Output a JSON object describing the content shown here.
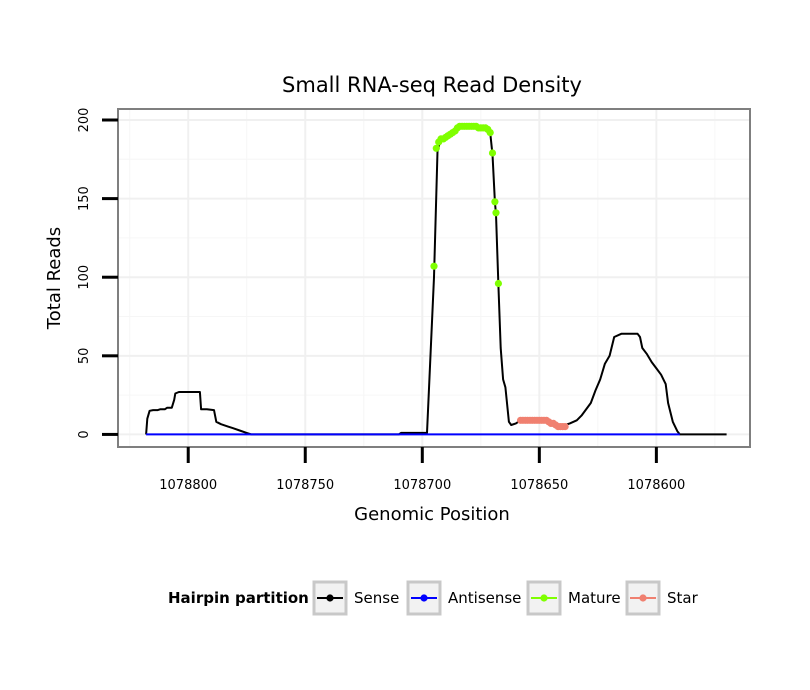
{
  "chart_data": {
    "type": "line",
    "title": "Small RNA-seq Read Density",
    "xlabel": "Genomic Position",
    "ylabel": "Total Reads",
    "xlim": [
      1078830,
      1078560
    ],
    "ylim": [
      -8,
      207
    ],
    "x_ticks": [
      1078800,
      1078750,
      1078700,
      1078650,
      1078600
    ],
    "y_ticks": [
      0,
      50,
      100,
      150,
      200
    ],
    "x_tick_labels": [
      "1078800",
      "1078750",
      "1078700",
      "1078650",
      "1078600"
    ],
    "y_tick_labels": [
      "0",
      "50",
      "100",
      "150",
      "200"
    ],
    "grid": true,
    "legend": {
      "position": "bottom",
      "title": "Hairpin partition",
      "entries": [
        {
          "name": "Sense",
          "color": "#000000"
        },
        {
          "name": "Antisense",
          "color": "#0000ff"
        },
        {
          "name": "Mature",
          "color": "#7fff00"
        },
        {
          "name": "Star",
          "color": "#f08070"
        }
      ]
    },
    "series": [
      {
        "name": "Sense",
        "kind": "line",
        "color": "#000000",
        "points": [
          [
            1078818,
            0
          ],
          [
            1078817.5,
            10
          ],
          [
            1078816.5,
            15
          ],
          [
            1078815,
            15.5
          ],
          [
            1078813,
            15.5
          ],
          [
            1078812,
            16
          ],
          [
            1078810,
            16
          ],
          [
            1078809,
            17
          ],
          [
            1078807,
            17
          ],
          [
            1078806,
            22
          ],
          [
            1078805.5,
            26
          ],
          [
            1078804,
            27
          ],
          [
            1078795,
            27
          ],
          [
            1078794.5,
            16
          ],
          [
            1078792,
            16
          ],
          [
            1078789,
            15.5
          ],
          [
            1078788,
            8
          ],
          [
            1078786,
            6.5
          ],
          [
            1078783,
            5
          ],
          [
            1078781,
            4
          ],
          [
            1078778,
            2.5
          ],
          [
            1078775,
            1
          ],
          [
            1078773,
            0
          ],
          [
            1078710,
            0
          ],
          [
            1078709,
            1
          ],
          [
            1078700,
            1
          ],
          [
            1078698,
            1
          ],
          [
            1078695,
            100
          ],
          [
            1078693.5,
            180
          ],
          [
            1078692.5,
            186
          ],
          [
            1078689,
            189
          ],
          [
            1078686,
            192
          ],
          [
            1078684,
            195
          ],
          [
            1078683,
            196
          ],
          [
            1078677,
            196
          ],
          [
            1078675,
            195
          ],
          [
            1078672,
            195
          ],
          [
            1078671,
            192
          ],
          [
            1078670,
            178
          ],
          [
            1078669,
            148
          ],
          [
            1078668.5,
            140
          ],
          [
            1078667.5,
            95
          ],
          [
            1078666.5,
            55
          ],
          [
            1078665.5,
            35
          ],
          [
            1078664.5,
            30
          ],
          [
            1078663,
            8
          ],
          [
            1078662,
            6
          ],
          [
            1078660,
            7
          ],
          [
            1078658,
            9
          ],
          [
            1078655,
            9
          ],
          [
            1078650,
            9
          ],
          [
            1078646,
            7
          ],
          [
            1078642,
            6
          ],
          [
            1078639,
            6
          ],
          [
            1078637,
            7
          ],
          [
            1078634,
            9
          ],
          [
            1078632,
            12
          ],
          [
            1078628,
            20
          ],
          [
            1078626,
            28
          ],
          [
            1078624,
            35
          ],
          [
            1078622,
            45
          ],
          [
            1078620,
            50
          ],
          [
            1078618,
            62
          ],
          [
            1078615,
            64
          ],
          [
            1078608,
            64
          ],
          [
            1078607,
            62
          ],
          [
            1078606,
            55
          ],
          [
            1078604,
            51
          ],
          [
            1078602,
            46
          ],
          [
            1078600,
            42
          ],
          [
            1078598,
            38
          ],
          [
            1078596,
            32
          ],
          [
            1078595,
            20
          ],
          [
            1078593,
            8
          ],
          [
            1078591,
            2
          ],
          [
            1078590,
            0
          ],
          [
            1078570,
            0
          ]
        ]
      },
      {
        "name": "Antisense",
        "kind": "line",
        "color": "#0000ff",
        "points": [
          [
            1078818,
            0
          ],
          [
            1078590,
            0
          ]
        ]
      },
      {
        "name": "Mature",
        "kind": "points",
        "color": "#7fff00",
        "points": [
          [
            1078695,
            107
          ],
          [
            1078694,
            182
          ],
          [
            1078693,
            186
          ],
          [
            1078692,
            188
          ],
          [
            1078691,
            188
          ],
          [
            1078690,
            189
          ],
          [
            1078689,
            190
          ],
          [
            1078688,
            191
          ],
          [
            1078687,
            192
          ],
          [
            1078686,
            193
          ],
          [
            1078685,
            195
          ],
          [
            1078684,
            196
          ],
          [
            1078683,
            196
          ],
          [
            1078682,
            196
          ],
          [
            1078681,
            196
          ],
          [
            1078680,
            196
          ],
          [
            1078679,
            196
          ],
          [
            1078678,
            196
          ],
          [
            1078677,
            196
          ],
          [
            1078676,
            195
          ],
          [
            1078675,
            195
          ],
          [
            1078674,
            195
          ],
          [
            1078673,
            195
          ],
          [
            1078672,
            194
          ],
          [
            1078671,
            192
          ],
          [
            1078670,
            179
          ],
          [
            1078669,
            148
          ],
          [
            1078668.5,
            141
          ],
          [
            1078667.5,
            96
          ]
        ]
      },
      {
        "name": "Star",
        "kind": "points",
        "color": "#f08070",
        "points": [
          [
            1078658,
            9
          ],
          [
            1078657,
            9
          ],
          [
            1078656,
            9
          ],
          [
            1078655,
            9
          ],
          [
            1078654,
            9
          ],
          [
            1078653,
            9
          ],
          [
            1078652,
            9
          ],
          [
            1078651,
            9
          ],
          [
            1078650,
            9
          ],
          [
            1078649,
            9
          ],
          [
            1078648,
            9
          ],
          [
            1078647,
            9
          ],
          [
            1078646,
            8
          ],
          [
            1078645,
            7
          ],
          [
            1078644,
            7
          ],
          [
            1078643,
            6
          ],
          [
            1078642,
            5
          ],
          [
            1078641,
            5
          ],
          [
            1078640,
            5
          ],
          [
            1078639,
            5
          ]
        ]
      }
    ]
  }
}
